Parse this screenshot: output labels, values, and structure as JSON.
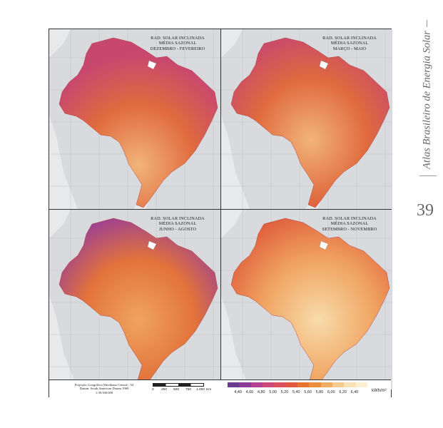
{
  "side_title": "Atlas Brasileiro de Energia Solar",
  "page_number": "39",
  "maps": [
    {
      "id": "dez-fev",
      "line1": "RAD. SOLAR INCLINADA",
      "line2": "MÉDIA SAZONAL",
      "line3": "DEZEMBRO - FEVEREIRO"
    },
    {
      "id": "mar-mai",
      "line1": "RAD. SOLAR INCLINADA",
      "line2": "MÉDIA SAZONAL",
      "line3": "MARÇO - MAIO"
    },
    {
      "id": "jun-ago",
      "line1": "RAD. SOLAR INCLINADA",
      "line2": "MÉDIA SAZONAL",
      "line3": "JUNHO - AGOSTO"
    },
    {
      "id": "set-nov",
      "line1": "RAD. SOLAR INCLINADA",
      "line2": "MÉDIA SAZONAL",
      "line3": "SETEMBRO - NOVEMBRO"
    }
  ],
  "projection": {
    "line1": "Projeção: Geográfica    Meridiano Central: -54",
    "line2": "Datum: South American Datum 1969",
    "line3": "1:39.500.000"
  },
  "scale_bar": {
    "labels": [
      "0",
      "250",
      "500",
      "750",
      "1.000",
      "Km"
    ]
  },
  "legend": {
    "unit": "kWh/m²",
    "values": [
      "4,40",
      "4,60",
      "4,80",
      "5,00",
      "5,20",
      "5,40",
      "5,60",
      "5,80",
      "6,00",
      "6,20",
      "6,40"
    ],
    "colors": [
      "#6a3a8e",
      "#8a3c95",
      "#b23f8f",
      "#cc4a78",
      "#d9505e",
      "#e0583f",
      "#e5722f",
      "#eb8e3c",
      "#efad63",
      "#f4cb8e",
      "#f8e2b4",
      "#fbf0d2"
    ]
  },
  "map_colors": {
    "dez-fev": {
      "base": "#e06a3e",
      "hi": "#f2b57a",
      "lo": "#c8476f"
    },
    "mar-mai": {
      "base": "#e06a3e",
      "hi": "#f2b57a",
      "lo": "#c8476f"
    },
    "jun-ago": {
      "base": "#e2733b",
      "hi": "#f0a45f",
      "lo": "#9a3e96"
    },
    "set-nov": {
      "base": "#f0a461",
      "hi": "#f8dcab",
      "lo": "#e0603d"
    }
  }
}
